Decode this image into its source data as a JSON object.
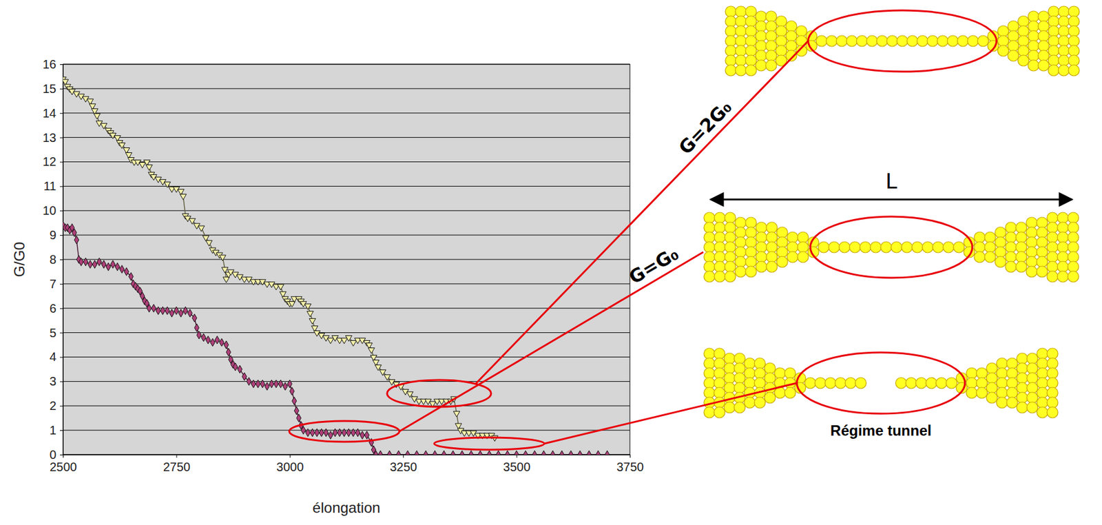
{
  "chart_data": {
    "type": "line",
    "x_label": "élongation",
    "y_label": "G/G0",
    "xlim": [
      2500,
      3750
    ],
    "xticks": [
      2500,
      2750,
      3000,
      3250,
      3500,
      3750
    ],
    "ylim": [
      0,
      16
    ],
    "yticks": [
      0,
      1,
      2,
      3,
      4,
      5,
      6,
      7,
      8,
      9,
      10,
      11,
      12,
      13,
      14,
      15,
      16
    ],
    "grid": true,
    "annotations": [
      "G=2G₀",
      "G=G₀",
      "L",
      "Régime tunnel"
    ],
    "series": [
      {
        "color": "#b0407a",
        "marker": "diamond",
        "x": [
          2500,
          2505,
          2510,
          2515,
          2520,
          2525,
          2530,
          2535,
          2540,
          2550,
          2560,
          2570,
          2580,
          2590,
          2600,
          2610,
          2620,
          2630,
          2640,
          2650,
          2655,
          2660,
          2665,
          2670,
          2675,
          2680,
          2685,
          2690,
          2700,
          2710,
          2720,
          2730,
          2740,
          2750,
          2760,
          2770,
          2780,
          2790,
          2795,
          2800,
          2810,
          2820,
          2830,
          2840,
          2850,
          2860,
          2865,
          2870,
          2875,
          2880,
          2890,
          2900,
          2910,
          2920,
          2930,
          2940,
          2950,
          2960,
          2970,
          2980,
          2990,
          3000,
          3005,
          3010,
          3015,
          3020,
          3025,
          3030,
          3040,
          3050,
          3060,
          3070,
          3080,
          3090,
          3100,
          3110,
          3120,
          3130,
          3140,
          3150,
          3160,
          3170,
          3180,
          3185,
          3190,
          3200,
          3220,
          3240,
          3260,
          3280,
          3300,
          3320,
          3340,
          3360,
          3380,
          3400,
          3420,
          3440,
          3460,
          3480,
          3500,
          3520,
          3540,
          3560,
          3580,
          3600,
          3620,
          3640,
          3660,
          3680,
          3700
        ],
        "values": [
          9.4,
          9.3,
          9.3,
          9.2,
          9.3,
          9.1,
          8.8,
          8.0,
          7.9,
          7.9,
          7.8,
          7.8,
          7.9,
          7.8,
          7.7,
          7.8,
          7.7,
          7.6,
          7.5,
          7.3,
          7.0,
          6.9,
          6.8,
          6.7,
          6.5,
          6.3,
          6.2,
          6.0,
          6.0,
          5.9,
          5.9,
          5.9,
          5.8,
          5.9,
          5.8,
          5.9,
          5.8,
          5.6,
          5.2,
          4.9,
          4.8,
          4.7,
          4.6,
          4.7,
          4.6,
          4.5,
          4.2,
          3.9,
          3.7,
          3.6,
          3.5,
          3.2,
          3.0,
          2.9,
          2.9,
          2.9,
          2.8,
          2.9,
          2.9,
          2.9,
          2.8,
          2.9,
          2.6,
          2.2,
          1.8,
          1.5,
          1.2,
          1.0,
          0.9,
          0.9,
          0.9,
          0.9,
          0.9,
          0.8,
          0.9,
          0.9,
          0.9,
          0.9,
          0.9,
          0.9,
          0.8,
          0.8,
          0.5,
          0.2,
          0,
          0,
          0,
          0,
          0,
          0,
          0,
          0,
          0,
          0,
          0,
          0,
          0,
          0,
          0,
          0,
          0,
          0,
          0,
          0,
          0,
          0,
          0,
          0,
          0,
          0,
          0
        ]
      },
      {
        "color": "#f7f2a8",
        "marker": "triangle-down",
        "x": [
          2500,
          2505,
          2510,
          2515,
          2520,
          2530,
          2540,
          2550,
          2560,
          2565,
          2570,
          2575,
          2580,
          2590,
          2600,
          2605,
          2610,
          2620,
          2625,
          2630,
          2640,
          2645,
          2650,
          2657,
          2665,
          2675,
          2685,
          2690,
          2695,
          2700,
          2710,
          2720,
          2730,
          2740,
          2750,
          2760,
          2765,
          2770,
          2775,
          2785,
          2795,
          2805,
          2815,
          2822,
          2830,
          2837,
          2845,
          2852,
          2857,
          2860,
          2865,
          2870,
          2880,
          2890,
          2900,
          2910,
          2920,
          2930,
          2940,
          2950,
          2960,
          2970,
          2980,
          2985,
          2990,
          2995,
          3000,
          3005,
          3010,
          3020,
          3025,
          3030,
          3040,
          3045,
          3050,
          3055,
          3060,
          3070,
          3080,
          3090,
          3100,
          3110,
          3120,
          3130,
          3140,
          3150,
          3160,
          3170,
          3175,
          3180,
          3185,
          3190,
          3195,
          3205,
          3215,
          3225,
          3235,
          3245,
          3255,
          3265,
          3275,
          3285,
          3295,
          3305,
          3315,
          3325,
          3335,
          3345,
          3355,
          3362,
          3368,
          3372,
          3377,
          3385,
          3395,
          3405,
          3415,
          3425,
          3435,
          3445,
          3452
        ],
        "values": [
          15.4,
          15.3,
          15.1,
          15.0,
          14.9,
          14.8,
          14.7,
          14.6,
          14.5,
          14.3,
          14.1,
          13.9,
          13.6,
          13.5,
          13.3,
          13.2,
          13.1,
          13.0,
          12.8,
          12.7,
          12.5,
          12.3,
          12.1,
          12.0,
          12.0,
          11.9,
          12.0,
          11.8,
          11.5,
          11.4,
          11.3,
          11.2,
          11.1,
          10.9,
          10.9,
          10.8,
          10.6,
          9.8,
          9.7,
          9.6,
          9.4,
          9.3,
          8.9,
          8.7,
          8.4,
          8.3,
          8.2,
          8.1,
          7.6,
          7.2,
          7.4,
          7.5,
          7.4,
          7.3,
          7.2,
          7.2,
          7.1,
          7.1,
          7.1,
          7.0,
          7.0,
          6.9,
          6.9,
          6.6,
          6.4,
          6.3,
          6.2,
          6.2,
          6.4,
          6.4,
          6.3,
          6.2,
          6.1,
          5.8,
          5.5,
          5.2,
          5.0,
          4.9,
          4.8,
          4.7,
          4.8,
          4.7,
          4.7,
          4.8,
          4.6,
          4.7,
          4.7,
          4.6,
          4.5,
          4.3,
          4.0,
          3.8,
          3.6,
          3.4,
          3.2,
          3.0,
          2.9,
          2.8,
          2.6,
          2.5,
          2.3,
          2.2,
          2.2,
          2.2,
          2.1,
          2.2,
          2.2,
          2.2,
          2.2,
          2.3,
          1.7,
          1.2,
          1.0,
          0.9,
          0.9,
          0.9,
          0.8,
          0.8,
          0.8,
          0.8,
          0.7
        ]
      }
    ]
  }
}
